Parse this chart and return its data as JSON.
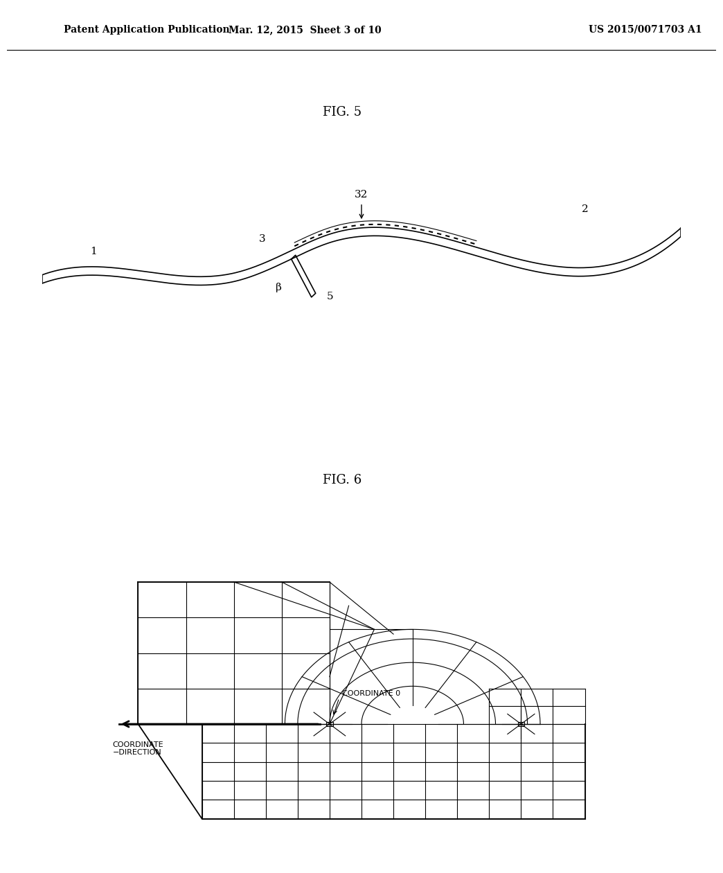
{
  "header_left": "Patent Application Publication",
  "header_center": "Mar. 12, 2015  Sheet 3 of 10",
  "header_right": "US 2015/0071703 A1",
  "fig5_label": "FIG. 5",
  "fig6_label": "FIG. 6",
  "bg_color": "#ffffff",
  "line_color": "#000000",
  "label1": "1",
  "label2": "2",
  "label3": "3",
  "label32": "32",
  "label5": "5",
  "label_beta": "β",
  "coord0_label": "COORDINATE 0",
  "coord_dir_label": "COORDINATE\n−DIRECTION"
}
